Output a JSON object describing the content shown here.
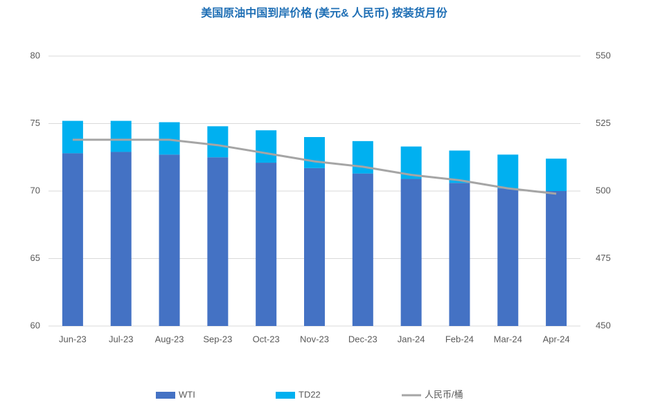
{
  "chart_data": {
    "type": "stacked-bar-line",
    "title": "美国原油中国到岸价格 (美元& 人民币) 按装货月份",
    "categories": [
      "Jun-23",
      "Jul-23",
      "Aug-23",
      "Sep-23",
      "Oct-23",
      "Nov-23",
      "Dec-23",
      "Jan-24",
      "Feb-24",
      "Mar-24",
      "Apr-24"
    ],
    "series": [
      {
        "name": "WTI",
        "color": "#4472c4",
        "type": "bar",
        "values": [
          72.8,
          72.9,
          72.7,
          72.5,
          72.1,
          71.7,
          71.3,
          70.9,
          70.6,
          70.2,
          70.0
        ]
      },
      {
        "name": "TD22",
        "color": "#00b0f0",
        "type": "bar",
        "values": [
          2.4,
          2.3,
          2.4,
          2.3,
          2.4,
          2.3,
          2.4,
          2.4,
          2.4,
          2.5,
          2.4
        ]
      },
      {
        "name": "人民币/桶",
        "color": "#a5a5a5",
        "type": "line",
        "axis": "y2",
        "values": [
          519,
          519,
          519,
          517,
          514,
          511,
          509,
          506,
          504,
          501,
          499
        ]
      }
    ],
    "ylim": [
      60,
      80
    ],
    "yticks": [
      60,
      65,
      70,
      75,
      80
    ],
    "y2lim": [
      450,
      550
    ],
    "y2ticks": [
      450,
      475,
      500,
      525,
      550
    ],
    "grid": true,
    "legend": "bottom"
  }
}
